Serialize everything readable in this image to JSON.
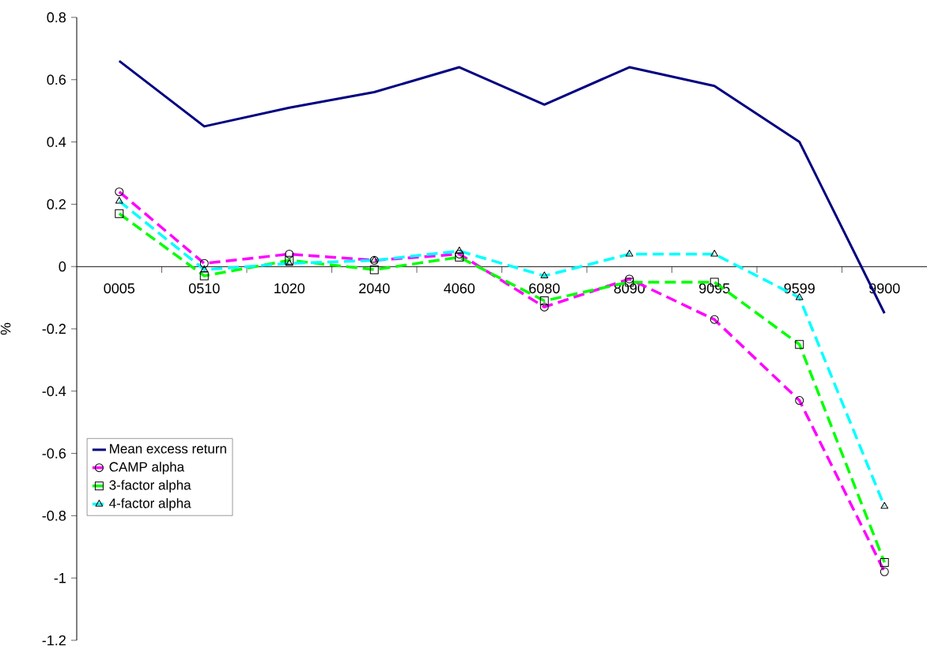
{
  "chart_data": {
    "type": "line",
    "ylabel": "%",
    "categories": [
      "0005",
      "0510",
      "1020",
      "2040",
      "4060",
      "6080",
      "8090",
      "9095",
      "9599",
      "9900"
    ],
    "series": [
      {
        "name": "Mean excess return",
        "color": "#000080",
        "marker": "none",
        "line_style": "solid",
        "values": [
          0.66,
          0.45,
          0.51,
          0.56,
          0.64,
          0.52,
          0.64,
          0.58,
          0.4,
          -0.15
        ]
      },
      {
        "name": "CAMP alpha",
        "color": "#ff00ff",
        "marker": "circle",
        "line_style": "dashed",
        "values": [
          0.24,
          0.01,
          0.04,
          0.02,
          0.04,
          -0.13,
          -0.04,
          -0.17,
          -0.43,
          -0.98
        ]
      },
      {
        "name": "3-factor alpha",
        "color": "#00ff00",
        "marker": "square",
        "line_style": "dashed",
        "values": [
          0.17,
          -0.03,
          0.02,
          -0.01,
          0.03,
          -0.11,
          -0.05,
          -0.05,
          -0.25,
          -0.95
        ]
      },
      {
        "name": "4-factor alpha",
        "color": "#00ffff",
        "marker": "triangle",
        "line_style": "dashed",
        "values": [
          0.21,
          -0.01,
          0.01,
          0.02,
          0.05,
          -0.03,
          0.04,
          0.04,
          -0.1,
          -0.77
        ]
      }
    ],
    "ylim": [
      -1.2,
      0.8
    ],
    "yticks": [
      -1.2,
      -1,
      -0.8,
      -0.6,
      -0.4,
      -0.2,
      0,
      0.2,
      0.4,
      0.6,
      0.8
    ],
    "grid": false,
    "legend": "left"
  }
}
